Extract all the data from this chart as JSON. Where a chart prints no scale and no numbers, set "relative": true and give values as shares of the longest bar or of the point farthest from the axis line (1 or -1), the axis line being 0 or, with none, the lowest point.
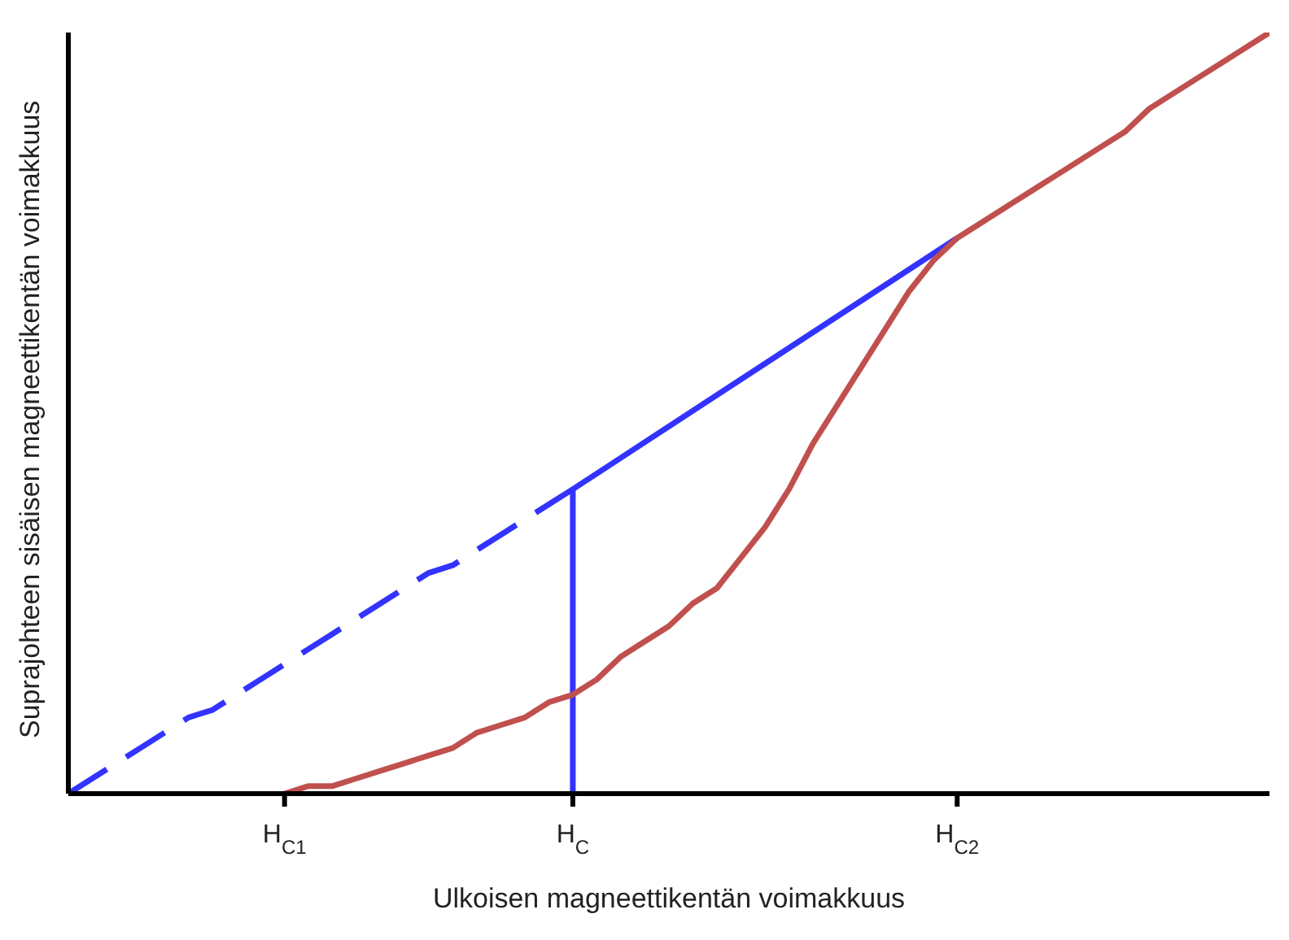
{
  "chart_data": {
    "type": "line",
    "relative": true,
    "xlabel": "Ulkoisen magneettikentän voimakkuus",
    "ylabel": "Suprajohteen sisäisen magneettikentän voimakkuus",
    "marker": "none",
    "categories": [
      null,
      null,
      null,
      null,
      null,
      null,
      null,
      null,
      null,
      "H$_{C1}$",
      null,
      null,
      null,
      null,
      null,
      null,
      null,
      null,
      null,
      null,
      null,
      "H$_{C}$",
      null,
      null,
      null,
      null,
      null,
      null,
      null,
      null,
      null,
      null,
      null,
      null,
      null,
      null,
      null,
      "H$_{C2}$",
      null,
      null,
      null,
      null,
      null,
      null,
      null,
      null,
      null,
      null,
      null,
      null,
      null
    ],
    "series": [
      {
        "color": "#3333ff",
        "line_style": "dashed",
        "values": [
          0,
          0.02,
          0.04,
          0.06,
          0.08,
          0.1,
          0.11,
          0.13,
          0.15,
          0.17,
          0.19,
          0.21,
          0.23,
          0.25,
          0.27,
          0.29,
          0.3,
          0.32,
          0.34,
          0.36,
          0.38,
          0.4,
          null,
          null,
          null,
          null,
          null,
          null,
          null,
          null,
          null,
          null,
          null,
          null,
          null,
          null,
          null,
          null,
          null,
          null,
          null,
          null,
          null,
          null,
          null,
          null,
          null,
          null,
          null,
          null,
          null
        ]
      },
      {
        "color": "#3333ff",
        "line_style": "solid",
        "x": [
          "H$_{C}$",
          "H$_{C}$",
          "H$_{C2}$"
        ],
        "values": [
          0,
          0.4,
          0.73
        ]
      },
      {
        "color": "#c0504d",
        "line_style": "solid",
        "values": [
          null,
          null,
          null,
          null,
          null,
          null,
          null,
          null,
          null,
          0,
          0.01,
          0.01,
          0.02,
          0.03,
          0.04,
          0.05,
          0.06,
          0.08,
          0.09,
          0.1,
          0.12,
          0.13,
          0.15,
          0.18,
          0.2,
          0.22,
          0.25,
          0.27,
          0.31,
          0.35,
          0.4,
          0.46,
          0.51,
          0.56,
          0.61,
          0.66,
          0.7,
          0.73,
          0.75,
          0.77,
          0.79,
          0.81,
          0.83,
          0.85,
          0.87,
          0.9,
          0.92,
          0.94,
          0.96,
          0.98,
          1
        ]
      }
    ]
  }
}
